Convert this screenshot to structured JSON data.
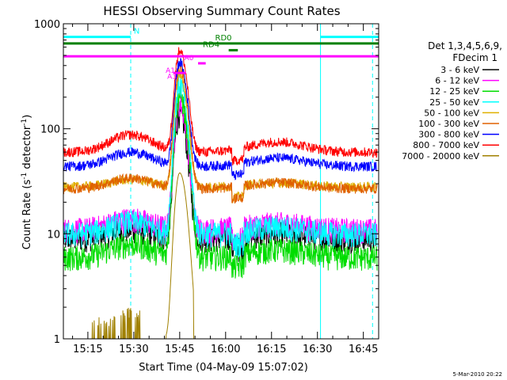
{
  "chart_data": {
    "type": "line",
    "title": "HESSI Observing Summary Count Rates",
    "xlabel": "Start Time (04-May-09 15:07:02)",
    "ylabel_main": "Count Rate (s",
    "ylabel_sup1": "-1",
    "ylabel_mid": " detector",
    "ylabel_sup2": "-1",
    "ylabel_end": ")",
    "footer": "5-Mar-2010 20:22",
    "y_scale": "log",
    "ylim": [
      1,
      1000
    ],
    "xlim_min": [
      907,
      1010
    ],
    "x_ticks": [
      {
        "m": 915,
        "label": "15:15"
      },
      {
        "m": 930,
        "label": "15:30"
      },
      {
        "m": 945,
        "label": "15:45"
      },
      {
        "m": 960,
        "label": "16:00"
      },
      {
        "m": 975,
        "label": "16:15"
      },
      {
        "m": 990,
        "label": "16:30"
      },
      {
        "m": 1005,
        "label": "16:45"
      }
    ],
    "y_ticks": [
      {
        "v": 1,
        "label": "1"
      },
      {
        "v": 10,
        "label": "10"
      },
      {
        "v": 100,
        "label": "100"
      },
      {
        "v": 1000,
        "label": "1000"
      }
    ],
    "legend": {
      "header1": "Det 1,3,4,5,6,9,",
      "header2": "FDecim 1",
      "position": "right"
    },
    "series": [
      {
        "name": "3 - 6 keV",
        "color": "#000000",
        "base": 9,
        "peak": 140,
        "pb_peak": 11
      },
      {
        "name": "6 - 12 keV",
        "color": "#ff00ff",
        "base": 11,
        "peak": 175,
        "pb_peak": 14
      },
      {
        "name": "12 - 25 keV",
        "color": "#00dd00",
        "base": 6,
        "peak": 210,
        "pb_peak": 8
      },
      {
        "name": "25 - 50 keV",
        "color": "#00ffff",
        "base": 10,
        "peak": 270,
        "pb_peak": 13
      },
      {
        "name": "50 - 100 keV",
        "color": "#e0b000",
        "base": 28,
        "peak": 330,
        "pb_peak": 33
      },
      {
        "name": "100 - 300 keV",
        "color": "#e06000",
        "base": 27,
        "peak": 380,
        "pb_peak": 34
      },
      {
        "name": "300 - 800 keV",
        "color": "#0000ff",
        "base": 44,
        "peak": 430,
        "pb_peak": 60
      },
      {
        "name": "800 - 7000 keV",
        "color": "#ff0000",
        "base": 60,
        "peak": 560,
        "pb_peak": 88
      },
      {
        "name": "7000 - 20000 keV",
        "color": "#a08000",
        "base": 1,
        "peak": 38,
        "pb_peak": 1
      }
    ],
    "attenuator_markers": [
      {
        "label": "A1",
        "color": "#ff00ff"
      },
      {
        "label": "A0",
        "color": "#ff00ff"
      },
      {
        "label": "A3",
        "color": "#ff00ff"
      }
    ],
    "flag_bars": [
      {
        "label": "N",
        "color": "#00ffff",
        "y": 750,
        "ranges": [
          [
            907,
            929
          ],
          [
            991,
            1010
          ]
        ]
      },
      {
        "label": "RD0",
        "color": "#008000",
        "y": 650,
        "ranges": [
          [
            907,
            1010
          ]
        ]
      },
      {
        "label": "RD4",
        "color": "#008000",
        "y": 560,
        "ranges": [
          [
            961,
            964
          ]
        ]
      },
      {
        "label": "",
        "color": "#ff00ff",
        "y": 490,
        "ranges": [
          [
            907,
            1010
          ]
        ]
      }
    ],
    "vertical_lines": [
      {
        "m": 907,
        "color": "#00ffff",
        "style": "solid"
      },
      {
        "m": 929,
        "color": "#00ffff",
        "style": "dashed"
      },
      {
        "m": 991,
        "color": "#00ffff",
        "style": "solid"
      },
      {
        "m": 1008,
        "color": "#00ffff",
        "style": "dashed"
      }
    ]
  }
}
